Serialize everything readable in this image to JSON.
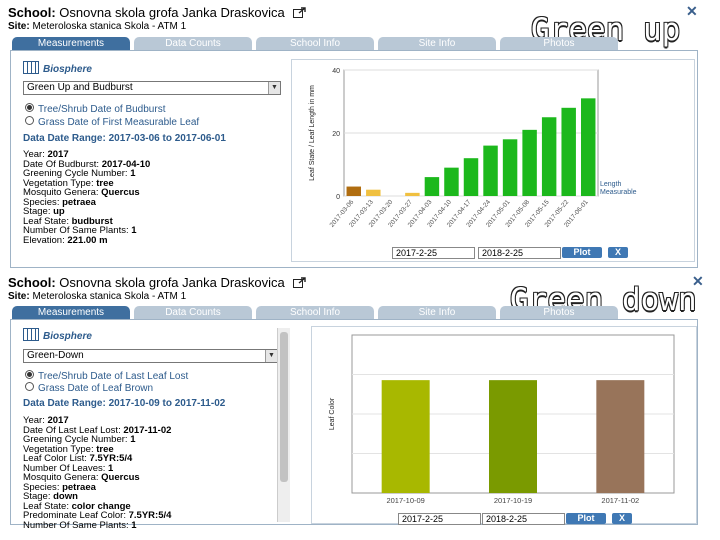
{
  "overlay_up": "Green up",
  "overlay_down": "Green down",
  "panels": [
    {
      "school_label": "School:",
      "school_name": "Osnovna skola grofa Janka Draskovica",
      "site_label": "Site:",
      "site_name": "Meteroloska stanica Skola - ATM 1",
      "tabs": [
        "Measurements",
        "Data Counts",
        "School Info",
        "Site Info",
        "Photos"
      ],
      "active_tab": "Measurements",
      "protocol": "Biosphere",
      "select_value": "Green Up and Budburst",
      "radio1": "Tree/Shrub Date of Budburst",
      "radio2": "Grass Date of First Measurable Leaf",
      "range": "Data Date Range: 2017-03-06 to 2017-06-01",
      "details": [
        [
          "Year",
          "2017"
        ],
        [
          "Date Of Budburst",
          "2017-04-10"
        ],
        [
          "Greening Cycle Number",
          "1"
        ],
        [
          "Vegetation Type",
          "tree"
        ],
        [
          "Mosquito Genera",
          "Quercus"
        ],
        [
          "Species",
          "petraea"
        ],
        [
          "Stage",
          "up"
        ],
        [
          "Leaf State",
          "budburst"
        ],
        [
          "Number Of Same Plants",
          "1"
        ],
        [
          "Elevation",
          "221.00 m"
        ]
      ],
      "date_from": "2017-2-25",
      "date_to": "2018-2-25",
      "plot_button": "Plot",
      "clear_button": "X"
    },
    {
      "school_label": "School:",
      "school_name": "Osnovna skola grofa Janka Draskovica",
      "site_label": "Site:",
      "site_name": "Meteroloska stanica Skola - ATM 1",
      "tabs": [
        "Measurements",
        "Data Counts",
        "School Info",
        "Site Info",
        "Photos"
      ],
      "active_tab": "Measurements",
      "protocol": "Biosphere",
      "select_value": "Green-Down",
      "radio1": "Tree/Shrub Date of Last Leaf Lost",
      "radio2": "Grass Date of Leaf Brown",
      "range": "Data Date Range: 2017-10-09 to 2017-11-02",
      "details": [
        [
          "Year",
          "2017"
        ],
        [
          "Date Of Last Leaf Lost",
          "2017-11-02"
        ],
        [
          "Greening Cycle Number",
          "1"
        ],
        [
          "Vegetation Type",
          "tree"
        ],
        [
          "Leaf Color List",
          "7.5YR:5/4"
        ],
        [
          "Number Of Leaves",
          "1"
        ],
        [
          "Mosquito Genera",
          "Quercus"
        ],
        [
          "Species",
          "petraea"
        ],
        [
          "Stage",
          "down"
        ],
        [
          "Leaf State",
          "color change"
        ],
        [
          "Predominate Leaf Color",
          "7.5YR:5/4"
        ],
        [
          "Number Of Same Plants",
          "1"
        ]
      ],
      "date_from": "2017-2-25",
      "date_to": "2018-2-25",
      "plot_button": "Plot",
      "clear_button": "X"
    }
  ],
  "chart_data": [
    {
      "type": "bar",
      "title": "",
      "xlabel": "",
      "ylabel": "Leaf State / Leaf Length in mm",
      "ylim": [
        0,
        40
      ],
      "yticks": [
        0,
        20,
        40
      ],
      "categories": [
        "2017-03-06",
        "2017-03-13",
        "2017-03-20",
        "2017-03-27",
        "2017-04-03",
        "2017-04-10",
        "2017-04-17",
        "2017-04-24",
        "2017-05-01",
        "2017-05-08",
        "2017-05-15",
        "2017-05-22",
        "2017-06-01"
      ],
      "values": [
        3,
        2,
        0,
        1,
        6,
        9,
        12,
        16,
        18,
        21,
        25,
        28,
        31
      ],
      "bar_colors": [
        "#b06d10",
        "#f0c040",
        "#f0c040",
        "#f0c040",
        "#1cb81c",
        "#1cb81c",
        "#1cb81c",
        "#1cb81c",
        "#1cb81c",
        "#1cb81c",
        "#1cb81c",
        "#1cb81c",
        "#1cb81c"
      ],
      "xtick_labels": [
        "2017-03-06",
        "2017-03-13",
        "2017-03-20",
        "2017-03-27",
        "2017-04-03",
        "2017-04-10",
        "2017-04-17",
        "2017-04-24",
        "2017-05-01",
        "2017-05-08",
        "2017-05-15",
        "2017-05-22",
        "2017-06-01"
      ],
      "legend": [
        {
          "name": "Length Measurable",
          "color": "#1cb81c"
        }
      ],
      "legend_position": "bottom-right",
      "grid": true
    },
    {
      "type": "bar",
      "title": "",
      "xlabel": "",
      "ylabel": "Leaf Color",
      "categories": [
        "2017-10-09",
        "2017-10-19",
        "2017-11-02"
      ],
      "values": [
        1,
        1,
        1
      ],
      "bar_colors": [
        "#a8b800",
        "#7a9a00",
        "#98745a"
      ],
      "grid": true
    }
  ]
}
